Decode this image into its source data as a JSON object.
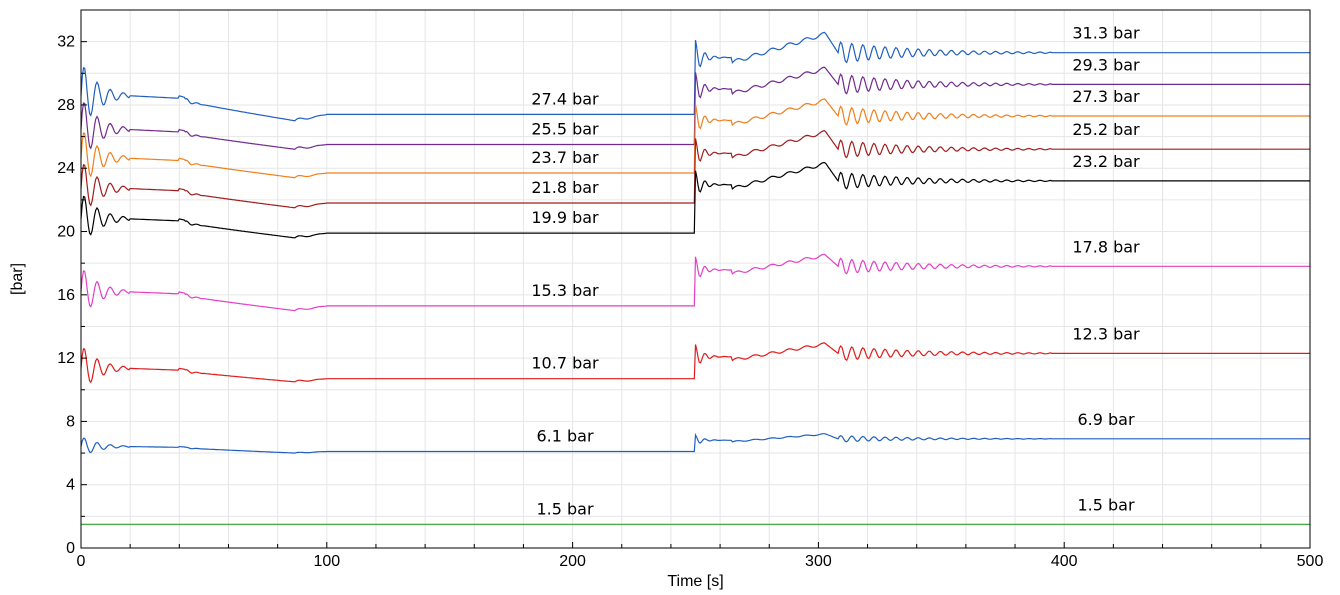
{
  "chart_data": {
    "type": "line",
    "title": "",
    "xlabel": "Time [s]",
    "ylabel": "[bar]",
    "xlim": [
      0,
      500
    ],
    "ylim": [
      0,
      34
    ],
    "xticks": [
      0,
      100,
      200,
      300,
      400,
      500
    ],
    "yticks": [
      0,
      4,
      8,
      12,
      16,
      20,
      24,
      28,
      32
    ],
    "grid": true,
    "legend": "none",
    "series": [
      {
        "color": "#1f5fbf",
        "start": 27.4,
        "end": 31.3,
        "peak": 32.5,
        "dip": 27.0,
        "osc": 2.0,
        "label_start": "27.4 bar",
        "label_end": "31.3 bar"
      },
      {
        "color": "#6f2a8f",
        "start": 25.5,
        "end": 29.3,
        "peak": 30.3,
        "dip": 25.2,
        "osc": 1.9,
        "label_start": "25.5 bar",
        "label_end": "29.3 bar"
      },
      {
        "color": "#f07f1a",
        "start": 23.7,
        "end": 27.3,
        "peak": 28.3,
        "dip": 23.4,
        "osc": 1.8,
        "label_start": "23.7 bar",
        "label_end": "27.3 bar"
      },
      {
        "color": "#a01c1c",
        "start": 21.8,
        "end": 25.2,
        "peak": 26.3,
        "dip": 21.5,
        "osc": 1.7,
        "label_start": "21.8 bar",
        "label_end": "25.2 bar"
      },
      {
        "color": "#000000",
        "start": 19.9,
        "end": 23.2,
        "peak": 24.3,
        "dip": 19.6,
        "osc": 1.6,
        "label_start": "19.9 bar",
        "label_end": "23.2 bar"
      },
      {
        "color": "#e23fc8",
        "start": 15.3,
        "end": 17.8,
        "peak": 18.5,
        "dip": 15.0,
        "osc": 1.5,
        "label_start": "15.3 bar",
        "label_end": "17.8 bar"
      },
      {
        "color": "#e01b1b",
        "start": 10.7,
        "end": 12.3,
        "peak": 12.9,
        "dip": 10.5,
        "osc": 1.4,
        "label_start": "10.7 bar",
        "label_end": "12.3 bar"
      },
      {
        "color": "#1f5fbf",
        "start": 6.1,
        "end": 6.9,
        "peak": 7.2,
        "dip": 6.0,
        "osc": 0.6,
        "label_start": "6.1 bar",
        "label_end": "6.9 bar"
      },
      {
        "color": "#2ca02c",
        "start": 1.5,
        "end": 1.5,
        "peak": 1.5,
        "dip": 1.5,
        "osc": 0.0,
        "label_start": "1.5 bar",
        "label_end": "1.5 bar"
      }
    ]
  }
}
